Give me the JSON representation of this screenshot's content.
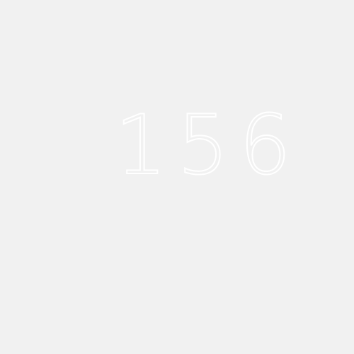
{
  "display": {
    "value": "156",
    "text_color": "#ffffff",
    "background_color": "#f1f1f1"
  }
}
